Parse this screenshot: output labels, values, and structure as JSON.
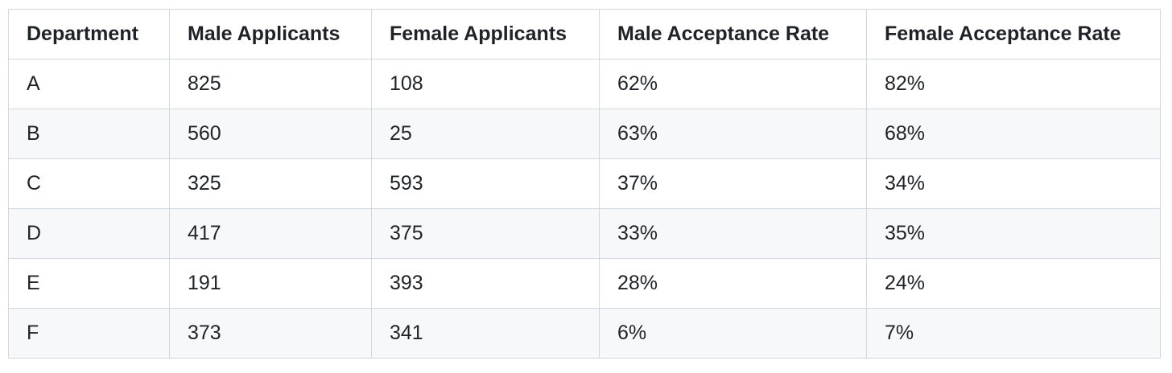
{
  "table": {
    "headers": [
      "Department",
      "Male Applicants",
      "Female Applicants",
      "Male Acceptance Rate",
      "Female Acceptance Rate"
    ],
    "rows": [
      [
        "A",
        "825",
        "108",
        "62%",
        "82%"
      ],
      [
        "B",
        "560",
        "25",
        "63%",
        "68%"
      ],
      [
        "C",
        "325",
        "593",
        "37%",
        "34%"
      ],
      [
        "D",
        "417",
        "375",
        "33%",
        "35%"
      ],
      [
        "E",
        "191",
        "393",
        "28%",
        "24%"
      ],
      [
        "F",
        "373",
        "341",
        "6%",
        "7%"
      ]
    ]
  },
  "colors": {
    "border": "#d0d7de",
    "stripe": "#f6f8fa",
    "text": "#1f2328"
  }
}
